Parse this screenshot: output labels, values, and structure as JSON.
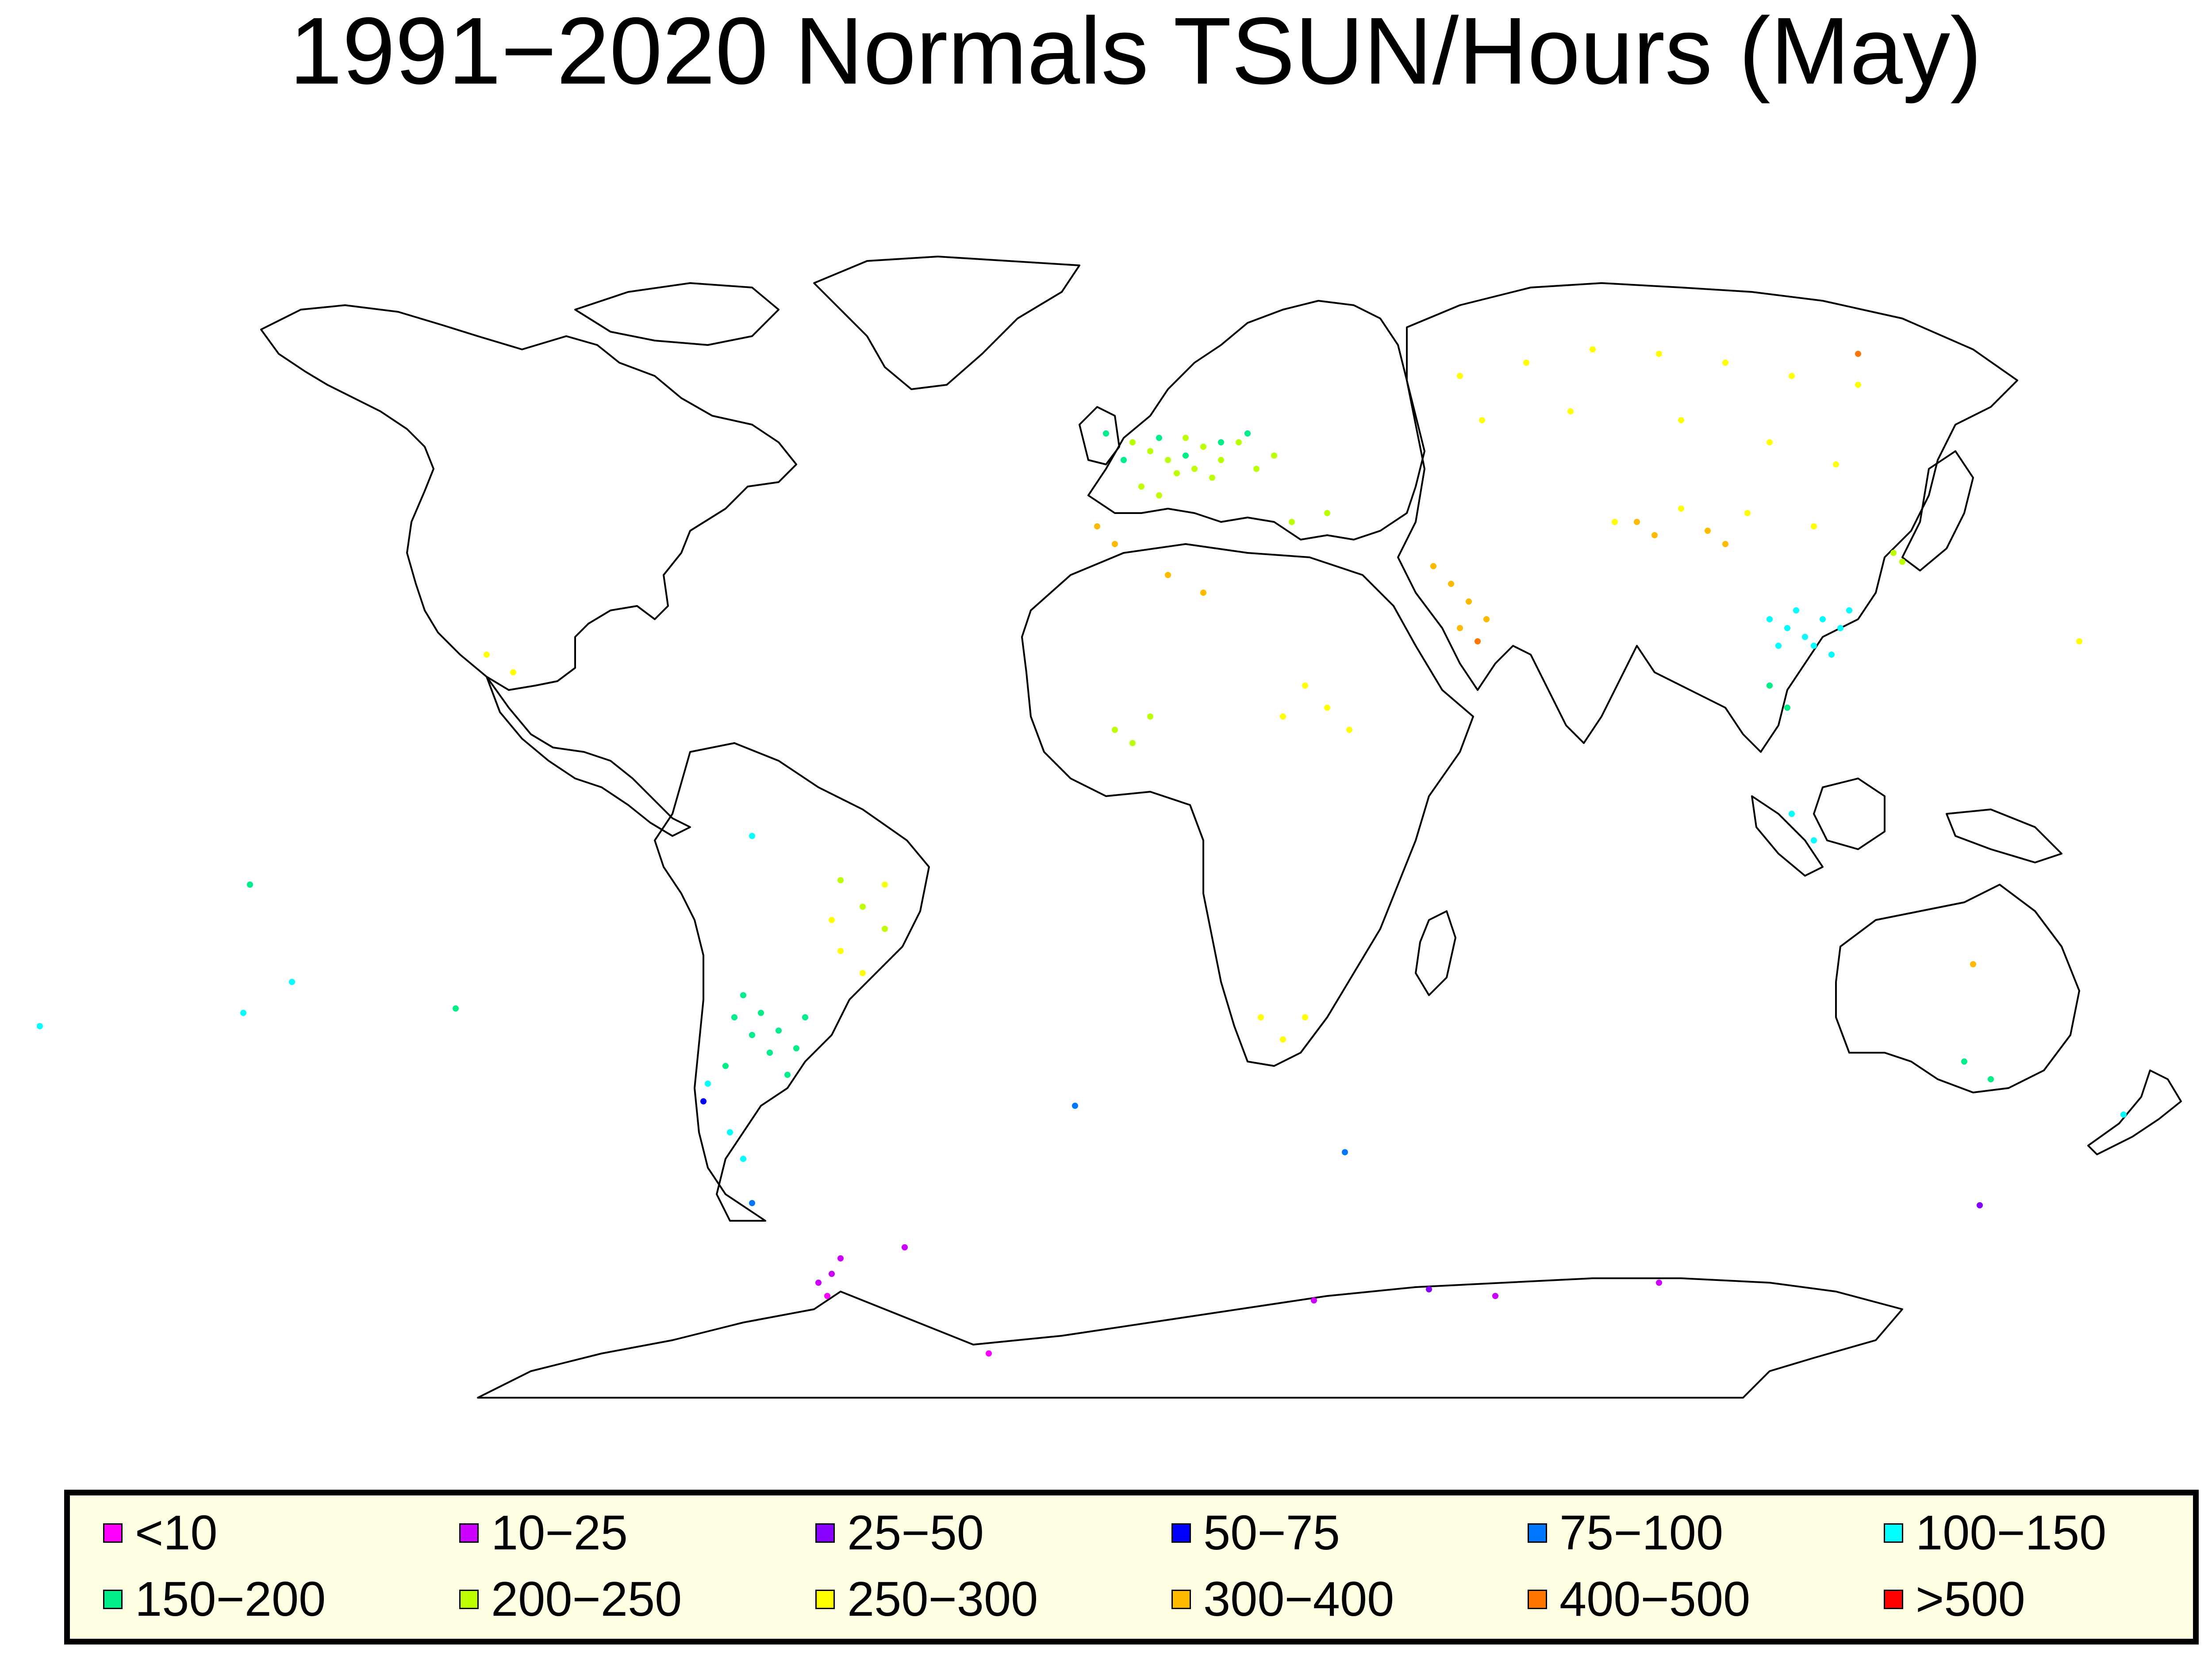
{
  "title": "1991−2020 Normals TSUN/Hours (May)",
  "legend": [
    {
      "label": "<10",
      "color": "#ff00ff"
    },
    {
      "label": "10−25",
      "color": "#cc00ff"
    },
    {
      "label": "25−50",
      "color": "#8800ff"
    },
    {
      "label": "50−75",
      "color": "#0000ff"
    },
    {
      "label": "75−100",
      "color": "#0077ff"
    },
    {
      "label": "100−150",
      "color": "#00ffff"
    },
    {
      "label": "150−200",
      "color": "#00ee88"
    },
    {
      "label": "200−250",
      "color": "#bbff00"
    },
    {
      "label": "250−300",
      "color": "#ffff00"
    },
    {
      "label": "300−400",
      "color": "#ffbb00"
    },
    {
      "label": "400−500",
      "color": "#ff7700"
    },
    {
      "label": ">500",
      "color": "#ff0000"
    }
  ],
  "icons": {
    "map": "world-map-icon"
  }
}
